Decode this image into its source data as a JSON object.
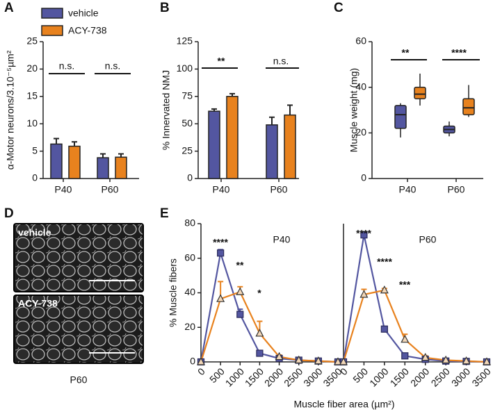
{
  "chart_data": [
    {
      "type": "bar",
      "panel": "A",
      "ylabel": "α-Motor neurons/3.10⁻⁵µm²",
      "categories": [
        "P40",
        "P60"
      ],
      "series": [
        {
          "name": "vehicle",
          "color": "#5356a0",
          "values": [
            6.3,
            3.8
          ],
          "errors": [
            1.0,
            0.7
          ]
        },
        {
          "name": "ACY-738",
          "color": "#e8821e",
          "values": [
            5.9,
            3.9
          ],
          "errors": [
            0.8,
            0.6
          ]
        }
      ],
      "ylim": [
        0,
        25
      ],
      "yticks": [
        0,
        5,
        10,
        15,
        20,
        25
      ],
      "annotations": [
        "n.s.",
        "n.s."
      ]
    },
    {
      "type": "bar",
      "panel": "B",
      "ylabel": "% Innervated NMJ",
      "categories": [
        "P40",
        "P60"
      ],
      "series": [
        {
          "color": "#5356a0",
          "values": [
            61.5,
            49
          ],
          "errors": [
            2,
            7
          ]
        },
        {
          "color": "#e8821e",
          "values": [
            75,
            58
          ],
          "errors": [
            2.5,
            9
          ]
        }
      ],
      "ylim": [
        0,
        125
      ],
      "yticks": [
        0,
        25,
        50,
        75,
        100,
        125
      ],
      "annotations": [
        "**",
        "n.s."
      ]
    },
    {
      "type": "box",
      "panel": "C",
      "ylabel": "Muscle weight (mg)",
      "categories": [
        "P40",
        "P60"
      ],
      "series": [
        {
          "color": "#5356a0",
          "values": [
            {
              "min": 18,
              "q1": 22,
              "median": 28,
              "q3": 32,
              "max": 33
            },
            {
              "min": 18.5,
              "q1": 20,
              "median": 21.5,
              "q3": 23,
              "max": 25
            }
          ]
        },
        {
          "color": "#e8821e",
          "values": [
            {
              "min": 32,
              "q1": 35,
              "median": 37,
              "q3": 40,
              "max": 46
            },
            {
              "min": 27,
              "q1": 28,
              "median": 31,
              "q3": 35,
              "max": 41
            }
          ]
        }
      ],
      "ylim": [
        0,
        60
      ],
      "yticks": [
        0,
        20,
        40,
        60
      ],
      "annotations": [
        "**",
        "****"
      ]
    },
    {
      "type": "line",
      "panel": "E",
      "title": "P40",
      "ylabel": "% Muscle fibers",
      "xlabel": "Muscle fiber area (µm²)",
      "x": [
        0,
        500,
        1000,
        1500,
        2000,
        2500,
        3000,
        3500
      ],
      "series": [
        {
          "color": "#5356a0",
          "marker": "square",
          "values": [
            0,
            63,
            27.5,
            5,
            2,
            1,
            0.5,
            0
          ],
          "errors": [
            0,
            2,
            3,
            1,
            0.5,
            0.3,
            0.2,
            0
          ]
        },
        {
          "color": "#e8821e",
          "marker": "triangle",
          "values": [
            0,
            36.5,
            40.5,
            16.5,
            3,
            1,
            0.5,
            0
          ],
          "errors": [
            0,
            10,
            3,
            7,
            1,
            0.5,
            0.5,
            0
          ]
        }
      ],
      "xlim": [
        0,
        3500
      ],
      "xticks": [
        0,
        500,
        1000,
        1500,
        2000,
        2500,
        3000,
        3500
      ],
      "ylim": [
        0,
        80
      ],
      "yticks": [
        0,
        20,
        40,
        60,
        80
      ],
      "annotations": [
        "****",
        "**",
        "*"
      ]
    },
    {
      "type": "line",
      "title": "P60",
      "x": [
        0,
        500,
        1000,
        1500,
        2000,
        2500,
        3000,
        3500
      ],
      "series": [
        {
          "color": "#5356a0",
          "marker": "square",
          "values": [
            0,
            73.5,
            19,
            3.5,
            1.5,
            0.5,
            0.3,
            0
          ],
          "errors": [
            0,
            1,
            1,
            0.5,
            0.3,
            0.2,
            0.2,
            0
          ]
        },
        {
          "color": "#e8821e",
          "marker": "triangle",
          "values": [
            0,
            39,
            41.5,
            13,
            2.5,
            1,
            0.5,
            0
          ],
          "errors": [
            0,
            3,
            1,
            3,
            1,
            0.5,
            0.5,
            0
          ]
        }
      ],
      "xlim": [
        0,
        3500
      ],
      "xticks": [
        0,
        500,
        1000,
        1500,
        2000,
        2500,
        3000,
        3500
      ],
      "ylim": [
        0,
        80
      ],
      "annotations": [
        "****",
        "****",
        "***"
      ]
    }
  ],
  "panel_d": {
    "label": "D",
    "images": [
      "vehicle",
      "ACY-738"
    ],
    "caption": "P60"
  }
}
